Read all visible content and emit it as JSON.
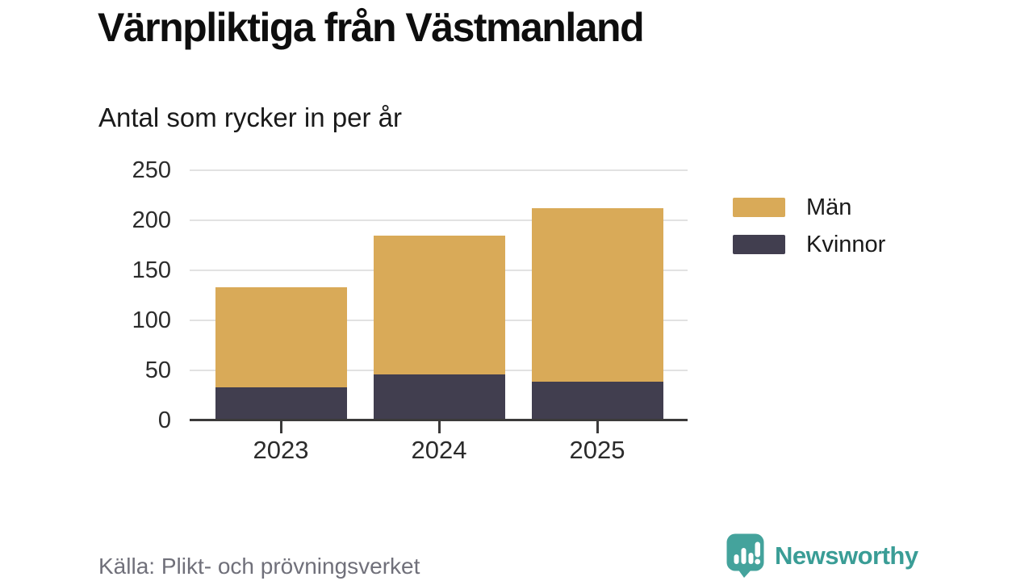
{
  "header": {
    "title": "Värnpliktiga från Västmanland",
    "subtitle": "Antal som rycker in per år"
  },
  "legend": {
    "items": [
      {
        "id": "man",
        "label": "Män",
        "color": "#d9aa58"
      },
      {
        "id": "kvinnor",
        "label": "Kvinnor",
        "color": "#413e4f"
      }
    ]
  },
  "footer": {
    "source": "Källa: Plikt- och prövningsverket",
    "brand": "Newsworthy"
  },
  "colors": {
    "man_gold": "#d9aa58",
    "kvinnor_dark": "#413e4f",
    "axis": "#3b3a3a",
    "gridline": "#e2e2e2",
    "brand_teal": "#3a9d96"
  },
  "chart_data": {
    "type": "bar",
    "stacked": true,
    "title": "Värnpliktiga från Västmanland",
    "subtitle": "Antal som rycker in per år",
    "categories": [
      "2023",
      "2024",
      "2025"
    ],
    "series": [
      {
        "name": "Kvinnor",
        "color": "#413e4f",
        "values": [
          33,
          46,
          39
        ]
      },
      {
        "name": "Män",
        "color": "#d9aa58",
        "values": [
          100,
          139,
          173
        ]
      }
    ],
    "totals": [
      133,
      185,
      212
    ],
    "xlabel": "",
    "ylabel": "Antal som rycker in per år",
    "ylim": [
      0,
      250
    ],
    "yticks": [
      0,
      50,
      100,
      150,
      200,
      250
    ],
    "grid": "horizontal",
    "legend_position": "right"
  }
}
